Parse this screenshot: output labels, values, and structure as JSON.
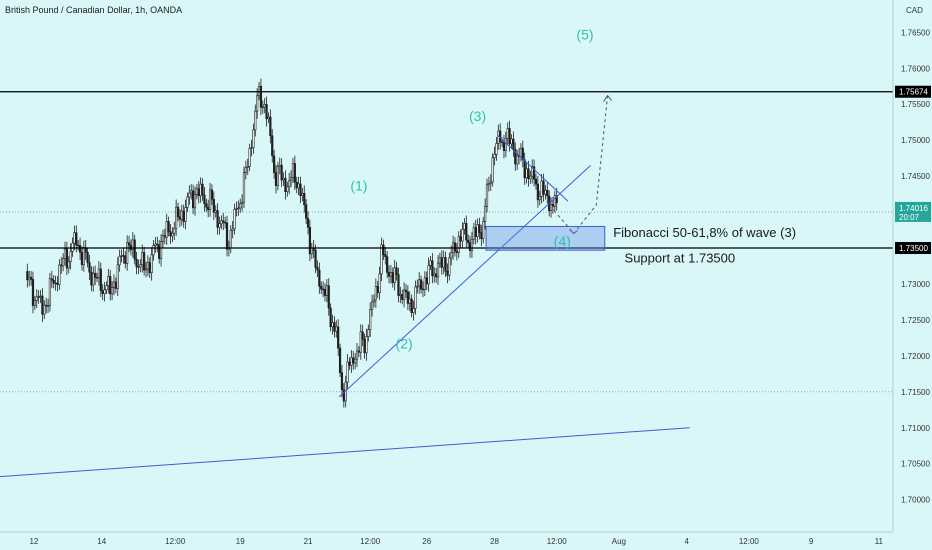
{
  "chart_data": {
    "type": "candlestick",
    "title": "British Pound / Canadian Dollar, 1h, OANDA",
    "currency": "CAD",
    "ylim": [
      1.6955,
      1.7695
    ],
    "y_ticks": [
      "1.76500",
      "1.76000",
      "1.75500",
      "1.75000",
      "1.74500",
      "1.74000",
      "1.73500",
      "1.73000",
      "1.72500",
      "1.72000",
      "1.71500",
      "1.71000",
      "1.70500",
      "1.70000"
    ],
    "x_ticks": [
      {
        "label": "12",
        "i": 1.5
      },
      {
        "label": "14",
        "i": 13.5
      },
      {
        "label": "12:00",
        "i": 26.5
      },
      {
        "label": "19",
        "i": 38
      },
      {
        "label": "21",
        "i": 50
      },
      {
        "label": "12:00",
        "i": 61
      },
      {
        "label": "26",
        "i": 71
      },
      {
        "label": "28",
        "i": 83
      },
      {
        "label": "12:00",
        "i": 94
      },
      {
        "label": "Aug",
        "i": 105
      },
      {
        "label": "4",
        "i": 117
      },
      {
        "label": "12:00",
        "i": 128
      },
      {
        "label": "9",
        "i": 139
      },
      {
        "label": "11",
        "i": 151
      }
    ],
    "index_range": [
      -4.5,
      153.5
    ],
    "close_path": [
      [
        0,
        1.731
      ],
      [
        3,
        1.7265
      ],
      [
        6,
        1.732
      ],
      [
        9,
        1.736
      ],
      [
        12,
        1.731
      ],
      [
        15,
        1.729
      ],
      [
        18,
        1.7355
      ],
      [
        21,
        1.732
      ],
      [
        24,
        1.736
      ],
      [
        27,
        1.739
      ],
      [
        30,
        1.743
      ],
      [
        33,
        1.741
      ],
      [
        36,
        1.736
      ],
      [
        39,
        1.745
      ],
      [
        41,
        1.7555
      ],
      [
        42,
        1.756
      ],
      [
        43,
        1.752
      ],
      [
        44,
        1.746
      ],
      [
        46,
        1.744
      ],
      [
        48,
        1.745
      ],
      [
        50,
        1.738
      ],
      [
        51,
        1.733
      ],
      [
        53,
        1.7285
      ],
      [
        55,
        1.723
      ],
      [
        56,
        1.715
      ],
      [
        58,
        1.72
      ],
      [
        60,
        1.722
      ],
      [
        62,
        1.729
      ],
      [
        63,
        1.734
      ],
      [
        65,
        1.731
      ],
      [
        68,
        1.727
      ],
      [
        70,
        1.73
      ],
      [
        72,
        1.732
      ],
      [
        75,
        1.733
      ],
      [
        77,
        1.737
      ],
      [
        79,
        1.736
      ],
      [
        81,
        1.7385
      ],
      [
        82,
        1.744
      ],
      [
        83,
        1.749
      ],
      [
        85,
        1.7505
      ],
      [
        87,
        1.748
      ],
      [
        89,
        1.7455
      ],
      [
        91,
        1.743
      ],
      [
        93,
        1.7415
      ],
      [
        94,
        1.7402
      ]
    ],
    "last_price": "1.74016",
    "countdown": "20:07",
    "levels": [
      {
        "label": "1.75674",
        "price": 1.75674
      },
      {
        "label": "1.73500",
        "price": 1.735
      }
    ],
    "trend_lines": [
      {
        "name": "wave-2-4 trendline",
        "points": [
          [
            55.5,
            1.7143
          ],
          [
            100,
            1.7465
          ]
        ]
      },
      {
        "name": "channel upper line",
        "points": [
          [
            83.5,
            1.7507
          ],
          [
            96,
            1.7415
          ]
        ]
      },
      {
        "name": "long-term support",
        "points": [
          [
            -4.5,
            1.7032
          ],
          [
            117.5,
            1.71
          ]
        ]
      }
    ],
    "projection": {
      "points": [
        [
          93.5,
          1.7402
        ],
        [
          96,
          1.738
        ],
        [
          97,
          1.737
        ],
        [
          101,
          1.741
        ],
        [
          103,
          1.7562
        ]
      ]
    },
    "zone": {
      "x": [
        81.5,
        102.5
      ],
      "y": [
        1.7347,
        1.738
      ]
    },
    "dotted_levels": [
      1.74,
      1.715
    ],
    "wave_labels": [
      {
        "text": "(1)",
        "i": 59,
        "price": 1.743
      },
      {
        "text": "(2)",
        "i": 67,
        "price": 1.721
      },
      {
        "text": "(3)",
        "i": 80,
        "price": 1.7527
      },
      {
        "text": "(4)",
        "i": 95,
        "price": 1.7353
      },
      {
        "text": "(5)",
        "i": 99,
        "price": 1.764
      }
    ],
    "annotations": [
      {
        "text": "Fibonacci 50-61,8% of wave (3)",
        "i": 104,
        "price": 1.7365
      },
      {
        "text": "Support at 1.73500",
        "i": 106,
        "price": 1.733
      }
    ]
  }
}
